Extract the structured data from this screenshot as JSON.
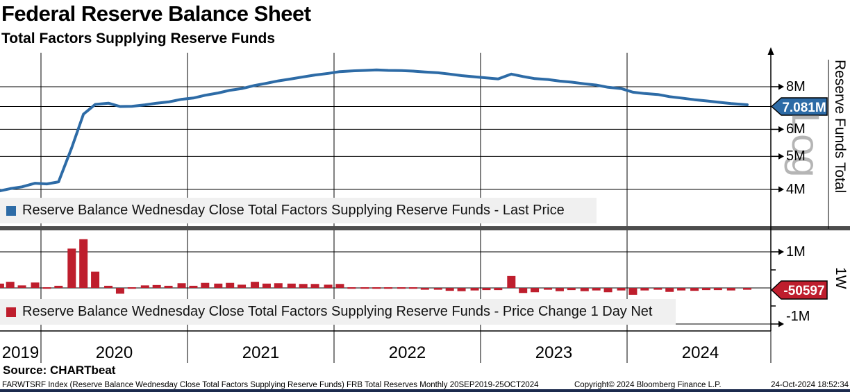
{
  "header": {
    "title": "Federal Reserve Balance Sheet",
    "subtitle": "Total Factors Supplying Reserve Funds"
  },
  "colors": {
    "line_blue": "#2d6ba6",
    "bar_red": "#be1e2d",
    "grid": "#000000",
    "legend_bg": "#f0f0f0",
    "divider": "#4d4d4d",
    "watermark_gray": "#b5b5b5",
    "bottom_strip": "#1b2a4d",
    "badge_text": "#ffffff"
  },
  "chart_data": [
    {
      "type": "line",
      "name": "Reserve Balance Wednesday Close Total Factors Supplying Reserve Funds - Last Price",
      "yscale": "log",
      "scale_label": "Log",
      "ylabel_right": "Reserve Funds Total",
      "last_price": 7.081,
      "last_price_label": "7.081M",
      "ylim": [
        3.8,
        9.9
      ],
      "yticks": [
        {
          "v": 8,
          "label": "8M"
        },
        {
          "v": 7,
          "label": ""
        },
        {
          "v": 6,
          "label": "6M"
        },
        {
          "v": 5,
          "label": "5M"
        },
        {
          "v": 4,
          "label": "4M"
        }
      ],
      "x_years": [
        2019.72,
        2019.79,
        2019.87,
        2019.96,
        2020.04,
        2020.12,
        2020.21,
        2020.29,
        2020.37,
        2020.46,
        2020.54,
        2020.62,
        2020.71,
        2020.79,
        2020.87,
        2020.96,
        2021.04,
        2021.12,
        2021.21,
        2021.29,
        2021.37,
        2021.46,
        2021.54,
        2021.62,
        2021.71,
        2021.79,
        2021.87,
        2021.96,
        2022.04,
        2022.12,
        2022.21,
        2022.29,
        2022.37,
        2022.46,
        2022.54,
        2022.62,
        2022.71,
        2022.79,
        2022.87,
        2022.96,
        2023.04,
        2023.12,
        2023.21,
        2023.29,
        2023.37,
        2023.46,
        2023.54,
        2023.62,
        2023.71,
        2023.79,
        2023.87,
        2023.96,
        2024.04,
        2024.12,
        2024.21,
        2024.29,
        2024.37,
        2024.46,
        2024.54,
        2024.62,
        2024.71,
        2024.82
      ],
      "values_millions": [
        3.96,
        4.02,
        4.07,
        4.17,
        4.15,
        4.21,
        5.3,
        6.65,
        7.1,
        7.16,
        7.0,
        7.01,
        7.08,
        7.16,
        7.22,
        7.35,
        7.41,
        7.55,
        7.67,
        7.81,
        7.9,
        8.07,
        8.19,
        8.32,
        8.44,
        8.55,
        8.66,
        8.75,
        8.86,
        8.9,
        8.93,
        8.96,
        8.93,
        8.92,
        8.89,
        8.84,
        8.79,
        8.71,
        8.62,
        8.55,
        8.49,
        8.43,
        8.71,
        8.57,
        8.45,
        8.4,
        8.31,
        8.25,
        8.16,
        8.09,
        7.97,
        7.9,
        7.71,
        7.64,
        7.59,
        7.48,
        7.41,
        7.33,
        7.27,
        7.21,
        7.14,
        7.081
      ]
    },
    {
      "type": "bar",
      "name": "Reserve Balance Wednesday Close Total Factors Supplying Reserve Funds - Price Change 1 Day Net",
      "period_label": "1W",
      "last_change": -50597,
      "last_change_label": "-50597",
      "ylim": [
        -1.2,
        1.6
      ],
      "yticks": [
        {
          "v": 1,
          "label": "1M"
        },
        {
          "v": -1,
          "label": "-1M"
        }
      ],
      "x_years": [
        2019.72,
        2019.79,
        2019.87,
        2019.96,
        2020.04,
        2020.12,
        2020.21,
        2020.29,
        2020.37,
        2020.46,
        2020.54,
        2020.62,
        2020.71,
        2020.79,
        2020.87,
        2020.96,
        2021.04,
        2021.12,
        2021.21,
        2021.29,
        2021.37,
        2021.46,
        2021.54,
        2021.62,
        2021.71,
        2021.79,
        2021.87,
        2021.96,
        2022.04,
        2022.12,
        2022.21,
        2022.29,
        2022.37,
        2022.46,
        2022.54,
        2022.62,
        2022.71,
        2022.79,
        2022.87,
        2022.96,
        2023.04,
        2023.12,
        2023.21,
        2023.29,
        2023.37,
        2023.46,
        2023.54,
        2023.62,
        2023.71,
        2023.79,
        2023.87,
        2023.96,
        2024.04,
        2024.12,
        2024.21,
        2024.29,
        2024.37,
        2024.46,
        2024.54,
        2024.62,
        2024.71,
        2024.82
      ],
      "values_millions": [
        0.12,
        0.17,
        0.07,
        0.15,
        -0.02,
        0.06,
        1.09,
        1.35,
        0.45,
        0.06,
        -0.16,
        0.01,
        0.07,
        0.08,
        0.06,
        0.13,
        0.06,
        0.14,
        0.12,
        0.14,
        0.09,
        0.17,
        0.12,
        0.13,
        0.12,
        0.11,
        0.11,
        0.09,
        0.11,
        0.04,
        0.03,
        0.03,
        -0.03,
        -0.01,
        -0.03,
        -0.05,
        -0.05,
        -0.08,
        -0.09,
        -0.07,
        -0.06,
        -0.06,
        0.33,
        -0.14,
        -0.12,
        -0.05,
        -0.09,
        -0.06,
        -0.09,
        -0.07,
        -0.12,
        -0.07,
        -0.19,
        -0.07,
        -0.05,
        -0.11,
        -0.07,
        -0.08,
        -0.06,
        -0.06,
        -0.07,
        -0.0506
      ]
    }
  ],
  "xaxis": {
    "year_labels": [
      "2019",
      "2020",
      "2021",
      "2022",
      "2023",
      "2024"
    ]
  },
  "footer": {
    "source": "Source: CHARTbeat",
    "ticker_line": "FARWTSRF Index (Reserve Balance Wednesday Close Total Factors Supplying Reserve Funds) FRB Total Reserves  Monthly 20SEP2019-25OCT2024",
    "copyright": "Copyright© 2024 Bloomberg Finance L.P.",
    "timestamp": "24-Oct-2024 18:52:34"
  }
}
